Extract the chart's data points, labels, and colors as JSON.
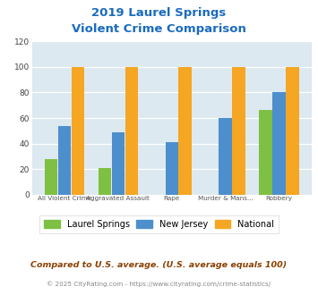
{
  "title_line1": "2019 Laurel Springs",
  "title_line2": "Violent Crime Comparison",
  "categories_top": [
    "",
    "Aggravated Assault",
    "",
    "Murder & Mans...",
    ""
  ],
  "categories_bot": [
    "All Violent Crime",
    "",
    "Rape",
    "",
    "Robbery"
  ],
  "laurel_springs": [
    28,
    21,
    0,
    0,
    66
  ],
  "new_jersey": [
    54,
    49,
    41,
    60,
    80
  ],
  "national": [
    100,
    100,
    100,
    100,
    100
  ],
  "color_laurel": "#7dc043",
  "color_nj": "#4d8fcc",
  "color_national": "#f5a623",
  "ylim": [
    0,
    120
  ],
  "yticks": [
    0,
    20,
    40,
    60,
    80,
    100,
    120
  ],
  "legend_labels": [
    "Laurel Springs",
    "New Jersey",
    "National"
  ],
  "footnote1": "Compared to U.S. average. (U.S. average equals 100)",
  "footnote2": "© 2025 CityRating.com - https://www.cityrating.com/crime-statistics/",
  "bg_color": "#dce9f0",
  "title_color": "#1a6bbf",
  "footnote1_color": "#8b4000",
  "footnote2_color": "#888888",
  "url_color": "#4d8fcc"
}
